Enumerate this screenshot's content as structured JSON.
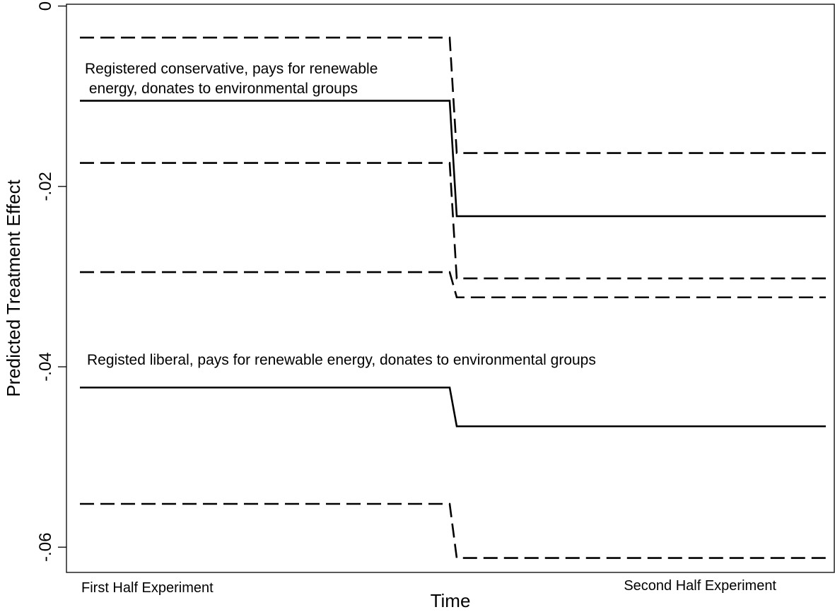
{
  "chart_data": {
    "type": "line",
    "xlabel": "Time",
    "ylabel": "Predicted Treatment Effect",
    "categories": [
      "First Half Experiment",
      "Second Half Experiment"
    ],
    "ylim": [
      -0.0628,
      0.0002
    ],
    "yticks": [
      0,
      -0.02,
      -0.04,
      -0.06
    ],
    "ytick_labels": [
      "0",
      "-.02",
      "-.04",
      "-.06"
    ],
    "grid": false,
    "legend": "none",
    "annotations": [
      {
        "lines": [
          "Registered conservative, pays for renewable",
          " energy, donates to environmental groups"
        ]
      },
      {
        "lines": [
          "Registed liberal, pays for renewable energy, donates to environmental groups"
        ]
      }
    ],
    "series": [
      {
        "group": "conservative",
        "role": "estimate",
        "style": "solid",
        "values": [
          -0.0105,
          -0.0233
        ]
      },
      {
        "group": "conservative",
        "role": "upper",
        "style": "dashed",
        "values": [
          -0.0035,
          -0.0163
        ]
      },
      {
        "group": "conservative",
        "role": "lower",
        "style": "dashed",
        "values": [
          -0.0174,
          -0.0302
        ]
      },
      {
        "group": "liberal",
        "role": "upper",
        "style": "dashed",
        "values": [
          -0.0295,
          -0.0323
        ]
      },
      {
        "group": "liberal",
        "role": "estimate",
        "style": "solid",
        "values": [
          -0.0423,
          -0.0466
        ]
      },
      {
        "group": "liberal",
        "role": "lower",
        "style": "dashed",
        "values": [
          -0.0552,
          -0.0612
        ]
      }
    ]
  }
}
